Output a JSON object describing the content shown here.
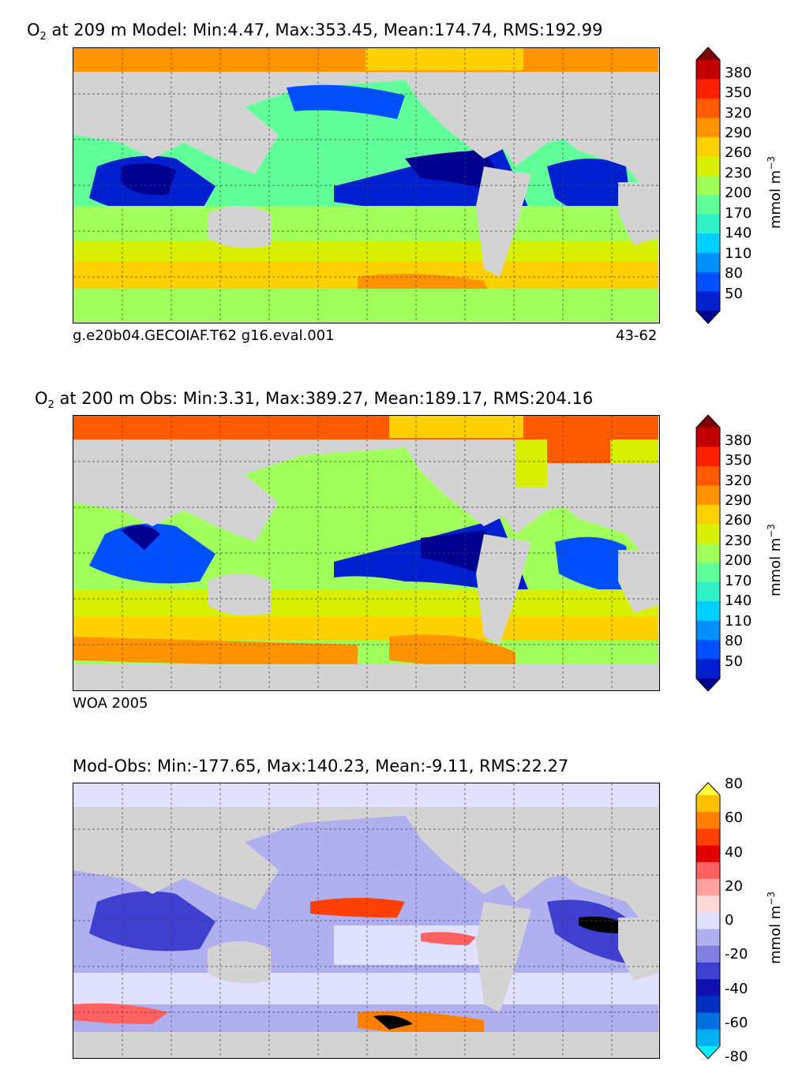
{
  "panels": [
    {
      "id": "model",
      "title_species": "O",
      "title_subscript": "2",
      "title_rest": " at 209 m Model: Min:4.47, Max:353.45, Mean:174.74, RMS:192.99",
      "footer_left": "g.e20b04.GECOIAF.T62 g16.eval.001",
      "footer_right": "43-62",
      "colorbar": {
        "ticks": [
          "380",
          "350",
          "320",
          "290",
          "260",
          "230",
          "200",
          "170",
          "140",
          "110",
          "80",
          "50"
        ],
        "unit": "mmol m",
        "unit_exp": "−3",
        "colors": [
          "#7f0000",
          "#c00000",
          "#ff2000",
          "#ff5a00",
          "#ff9400",
          "#ffd000",
          "#d8f000",
          "#a0ff5a",
          "#60ff9a",
          "#30f0c8",
          "#00d0ff",
          "#0090ff",
          "#0050ff",
          "#0020d0",
          "#000090"
        ]
      }
    },
    {
      "id": "obs",
      "title_species": "O",
      "title_subscript": "2",
      "title_rest": " at 200 m Obs: Min:3.31, Max:389.27, Mean:189.17, RMS:204.16",
      "footer_left": "WOA 2005",
      "footer_right": "",
      "colorbar": {
        "ticks": [
          "380",
          "350",
          "320",
          "290",
          "260",
          "230",
          "200",
          "170",
          "140",
          "110",
          "80",
          "50"
        ],
        "unit": "mmol m",
        "unit_exp": "−3",
        "colors": [
          "#7f0000",
          "#c00000",
          "#ff2000",
          "#ff5a00",
          "#ff9400",
          "#ffd000",
          "#d8f000",
          "#a0ff5a",
          "#60ff9a",
          "#30f0c8",
          "#00d0ff",
          "#0090ff",
          "#0050ff",
          "#0020d0",
          "#000090"
        ]
      }
    },
    {
      "id": "diff",
      "title_species": "",
      "title_subscript": "",
      "title_rest": "Mod-Obs: Min:-177.65, Max:140.23, Mean:-9.11, RMS:22.27",
      "footer_left": "",
      "footer_right": "",
      "colorbar": {
        "ticks": [
          "80",
          "60",
          "40",
          "20",
          "0",
          "-20",
          "-40",
          "-60",
          "-80"
        ],
        "unit": "mmol m",
        "unit_exp": "−3",
        "colors": [
          "#ffff40",
          "#ffc000",
          "#ff8000",
          "#ff4000",
          "#e00000",
          "#ff6060",
          "#ffa0a0",
          "#ffd8d8",
          "#e0e0ff",
          "#b0b0f0",
          "#8080e0",
          "#4040d0",
          "#1010b0",
          "#0030c0",
          "#0070e0",
          "#00b0f0",
          "#00f0ff"
        ]
      }
    }
  ]
}
